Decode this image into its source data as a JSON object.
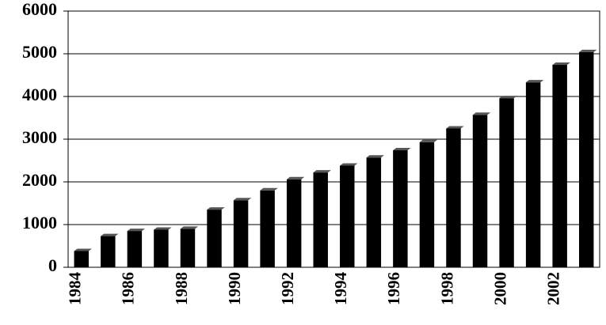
{
  "chart_data": {
    "type": "bar",
    "categories": [
      "1984",
      null,
      "1986",
      null,
      "1988",
      null,
      "1990",
      null,
      "1992",
      null,
      "1994",
      null,
      "1996",
      null,
      "1998",
      null,
      "2000",
      null,
      "2002",
      null
    ],
    "values": [
      380,
      730,
      850,
      880,
      900,
      1350,
      1570,
      1800,
      2060,
      2220,
      2380,
      2570,
      2740,
      2930,
      3250,
      3570,
      3960,
      4330,
      4740,
      5040
    ],
    "color": "#000000",
    "ylim": [
      0,
      6000
    ],
    "yticks": [
      0,
      1000,
      2000,
      3000,
      4000,
      5000,
      6000
    ],
    "grid": true
  }
}
